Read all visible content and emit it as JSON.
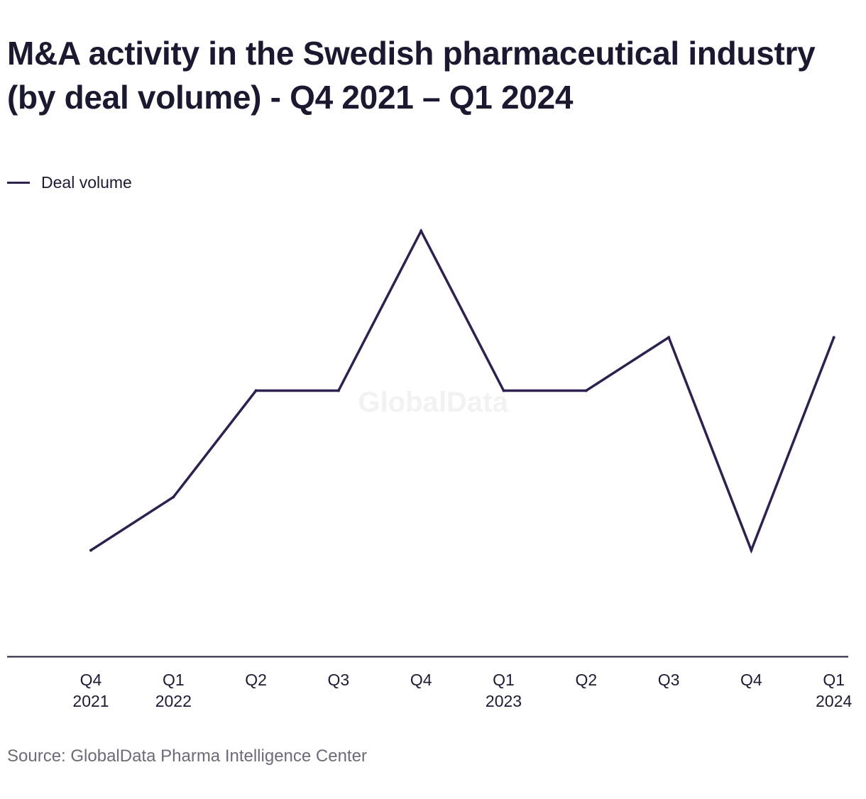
{
  "title": "M&A activity in the Swedish pharmaceutical industry (by deal volume) - Q4 2021 – Q1 2024",
  "source": "Source: GlobalData Pharma Intelligence Center",
  "watermark": "GlobalData",
  "colors": {
    "line": "#2e2150",
    "axis": "#1c1b33",
    "text": "#1c1b33",
    "source_text": "#6b6b78"
  },
  "chart_data": {
    "type": "line",
    "title": "M&A activity in the Swedish pharmaceutical industry (by deal volume) - Q4 2021 – Q1 2024",
    "xlabel": "",
    "ylabel": "",
    "categories": [
      "Q4 2021",
      "Q1 2022",
      "Q2",
      "Q3",
      "Q4",
      "Q1 2023",
      "Q2",
      "Q3",
      "Q4",
      "Q1 2024"
    ],
    "tick_labels": [
      [
        "Q4",
        "2021"
      ],
      [
        "Q1",
        "2022"
      ],
      [
        "Q2"
      ],
      [
        "Q3"
      ],
      [
        "Q4"
      ],
      [
        "Q1",
        "2023"
      ],
      [
        "Q2"
      ],
      [
        "Q3"
      ],
      [
        "Q4"
      ],
      [
        "Q1",
        "2024"
      ]
    ],
    "series": [
      {
        "name": "Deal volume",
        "values": [
          2,
          3,
          5,
          5,
          8,
          5,
          5,
          6,
          2,
          6
        ]
      }
    ],
    "ylim": [
      0,
      10
    ],
    "grid": false,
    "y_axis_visible": false,
    "legend_position": "top-left"
  }
}
